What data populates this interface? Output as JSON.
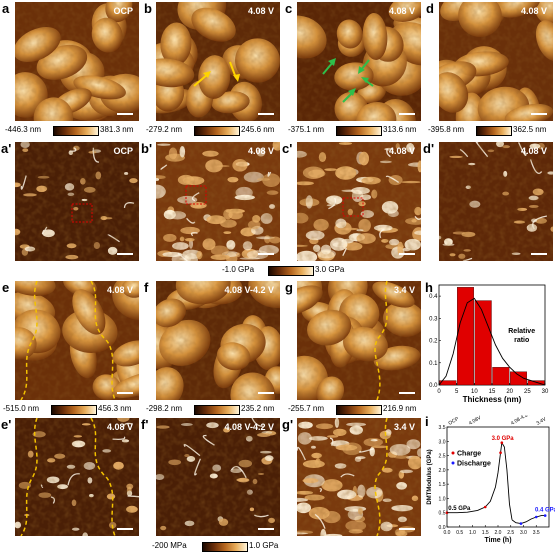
{
  "panels": {
    "a": {
      "label": "a",
      "voltage": "OCP"
    },
    "b": {
      "label": "b",
      "voltage": "4.08 V"
    },
    "c": {
      "label": "c",
      "voltage": "4.08 V"
    },
    "d": {
      "label": "d",
      "voltage": "4.08 V"
    },
    "a2": {
      "label": "a'",
      "voltage": "OCP"
    },
    "b2": {
      "label": "b'",
      "voltage": "4.08 V"
    },
    "c2": {
      "label": "c'",
      "voltage": "4.08 V"
    },
    "d2": {
      "label": "d'",
      "voltage": "4.08 V"
    },
    "e": {
      "label": "e",
      "voltage": "4.08 V"
    },
    "f": {
      "label": "f",
      "voltage": "4.08 V-4.2 V"
    },
    "g": {
      "label": "g",
      "voltage": "3.4 V"
    },
    "e2": {
      "label": "e'",
      "voltage": "4.08 V"
    },
    "f2": {
      "label": "f'",
      "voltage": "4.08 V-4.2 V"
    },
    "g2": {
      "label": "g'",
      "voltage": "3.4 V"
    },
    "h": {
      "label": "h"
    },
    "i": {
      "label": "i"
    }
  },
  "colorbars": {
    "a": {
      "min": "-446.3 nm",
      "max": "381.3 nm"
    },
    "b": {
      "min": "-279.2 nm",
      "max": "245.6 nm"
    },
    "c": {
      "min": "-375.1 nm",
      "max": "313.6 nm"
    },
    "d": {
      "min": "-395.8 nm",
      "max": "362.5 nm"
    },
    "modulus_row2": {
      "min": "-1.0 GPa",
      "max": "3.0 GPa"
    },
    "e": {
      "min": "-515.0 nm",
      "max": "456.3 nm"
    },
    "f": {
      "min": "-298.2 nm",
      "max": "235.2 nm"
    },
    "g": {
      "min": "-255.7 nm",
      "max": "216.9 nm"
    },
    "modulus_row4": {
      "min": "-200 MPa",
      "max": "1.0 GPa"
    }
  },
  "colors": {
    "afm_dark": "#3a1804",
    "afm_mid": "#b5661f",
    "afm_light": "#f3cf8e",
    "yellow_arrow": "#ffd400",
    "green_arrow": "#2fbf4a",
    "dashed_boundary": "#f3c200",
    "bar_red": "#e00000",
    "charge_red": "#e00000",
    "discharge_blue": "#1a1aff"
  },
  "chart_data": [
    {
      "type": "bar",
      "panel": "h",
      "xlabel": "Thickness (nm)",
      "ylabel": "Relative ratio",
      "xlim": [
        0,
        30
      ],
      "ylim": [
        0,
        0.45
      ],
      "xticks": [
        "0",
        "5",
        "10",
        "15",
        "20",
        "25",
        "30"
      ],
      "yticks": [
        "0.0",
        "0.1",
        "0.2",
        "0.3",
        "0.4"
      ],
      "bin_centers": [
        2.5,
        7.5,
        12.5,
        17.5,
        22.5,
        27.5
      ],
      "bin_width": 5,
      "values": [
        0.02,
        0.44,
        0.38,
        0.08,
        0.06,
        0.02
      ],
      "fit_curve": {
        "x": [
          0,
          2,
          4,
          6,
          8,
          10,
          12,
          14,
          16,
          18,
          20,
          22,
          24,
          26,
          28,
          30
        ],
        "y": [
          0.0,
          0.04,
          0.14,
          0.28,
          0.37,
          0.39,
          0.34,
          0.26,
          0.18,
          0.12,
          0.08,
          0.05,
          0.03,
          0.02,
          0.01,
          0.0
        ]
      }
    },
    {
      "type": "line",
      "panel": "i",
      "xlabel": "Time (h)",
      "ylabel": "DMTModulus (GPa)",
      "xlim": [
        0,
        4
      ],
      "ylim": [
        0,
        3.5
      ],
      "xticks": [
        "0.0",
        "0.5",
        "1.0",
        "1.5",
        "2.0",
        "2.5",
        "3.0",
        "3.5"
      ],
      "yticks": [
        "0.0",
        "0.5",
        "1.0",
        "1.5",
        "2.0",
        "2.5",
        "3.0",
        "3.5"
      ],
      "legend": [
        "Charge",
        "Discharge"
      ],
      "legend_position": "left",
      "top_labels": [
        "OCP",
        "4.08V",
        "4.08-4.2V",
        "3.4V"
      ],
      "top_label_x": [
        0.1,
        0.9,
        2.55,
        3.55
      ],
      "annotations": [
        {
          "text": "0.5 GPa",
          "x": 0.05,
          "y": 0.6,
          "color": "#000000"
        },
        {
          "text": "3.0 GPa",
          "x": 1.75,
          "y": 3.05,
          "color": "#e00000"
        },
        {
          "text": "0.4 GPa",
          "x": 3.45,
          "y": 0.55,
          "color": "#1a1aff"
        }
      ],
      "series": [
        {
          "name": "Charge",
          "color": "#000000",
          "x": [
            0,
            0.4,
            0.8,
            1.2,
            1.5,
            1.7,
            1.9,
            2.0,
            2.1,
            2.15,
            2.25,
            2.35,
            2.45,
            2.55
          ],
          "y": [
            0.5,
            0.5,
            0.52,
            0.58,
            0.7,
            0.9,
            1.4,
            1.9,
            2.6,
            2.95,
            2.8,
            2.0,
            0.8,
            0.25
          ]
        },
        {
          "name": "Discharge",
          "color": "#000000",
          "x": [
            2.55,
            2.7,
            2.9,
            3.1,
            3.3,
            3.5,
            3.7,
            3.85
          ],
          "y": [
            0.25,
            0.15,
            0.12,
            0.18,
            0.28,
            0.35,
            0.4,
            0.4
          ]
        }
      ],
      "charge_points": {
        "x": [
          0,
          1.5,
          2.1,
          2.15
        ],
        "y": [
          0.5,
          0.7,
          2.6,
          2.95
        ]
      },
      "discharge_points": {
        "x": [
          2.9,
          3.5,
          3.85
        ],
        "y": [
          0.12,
          0.35,
          0.4
        ]
      }
    }
  ]
}
